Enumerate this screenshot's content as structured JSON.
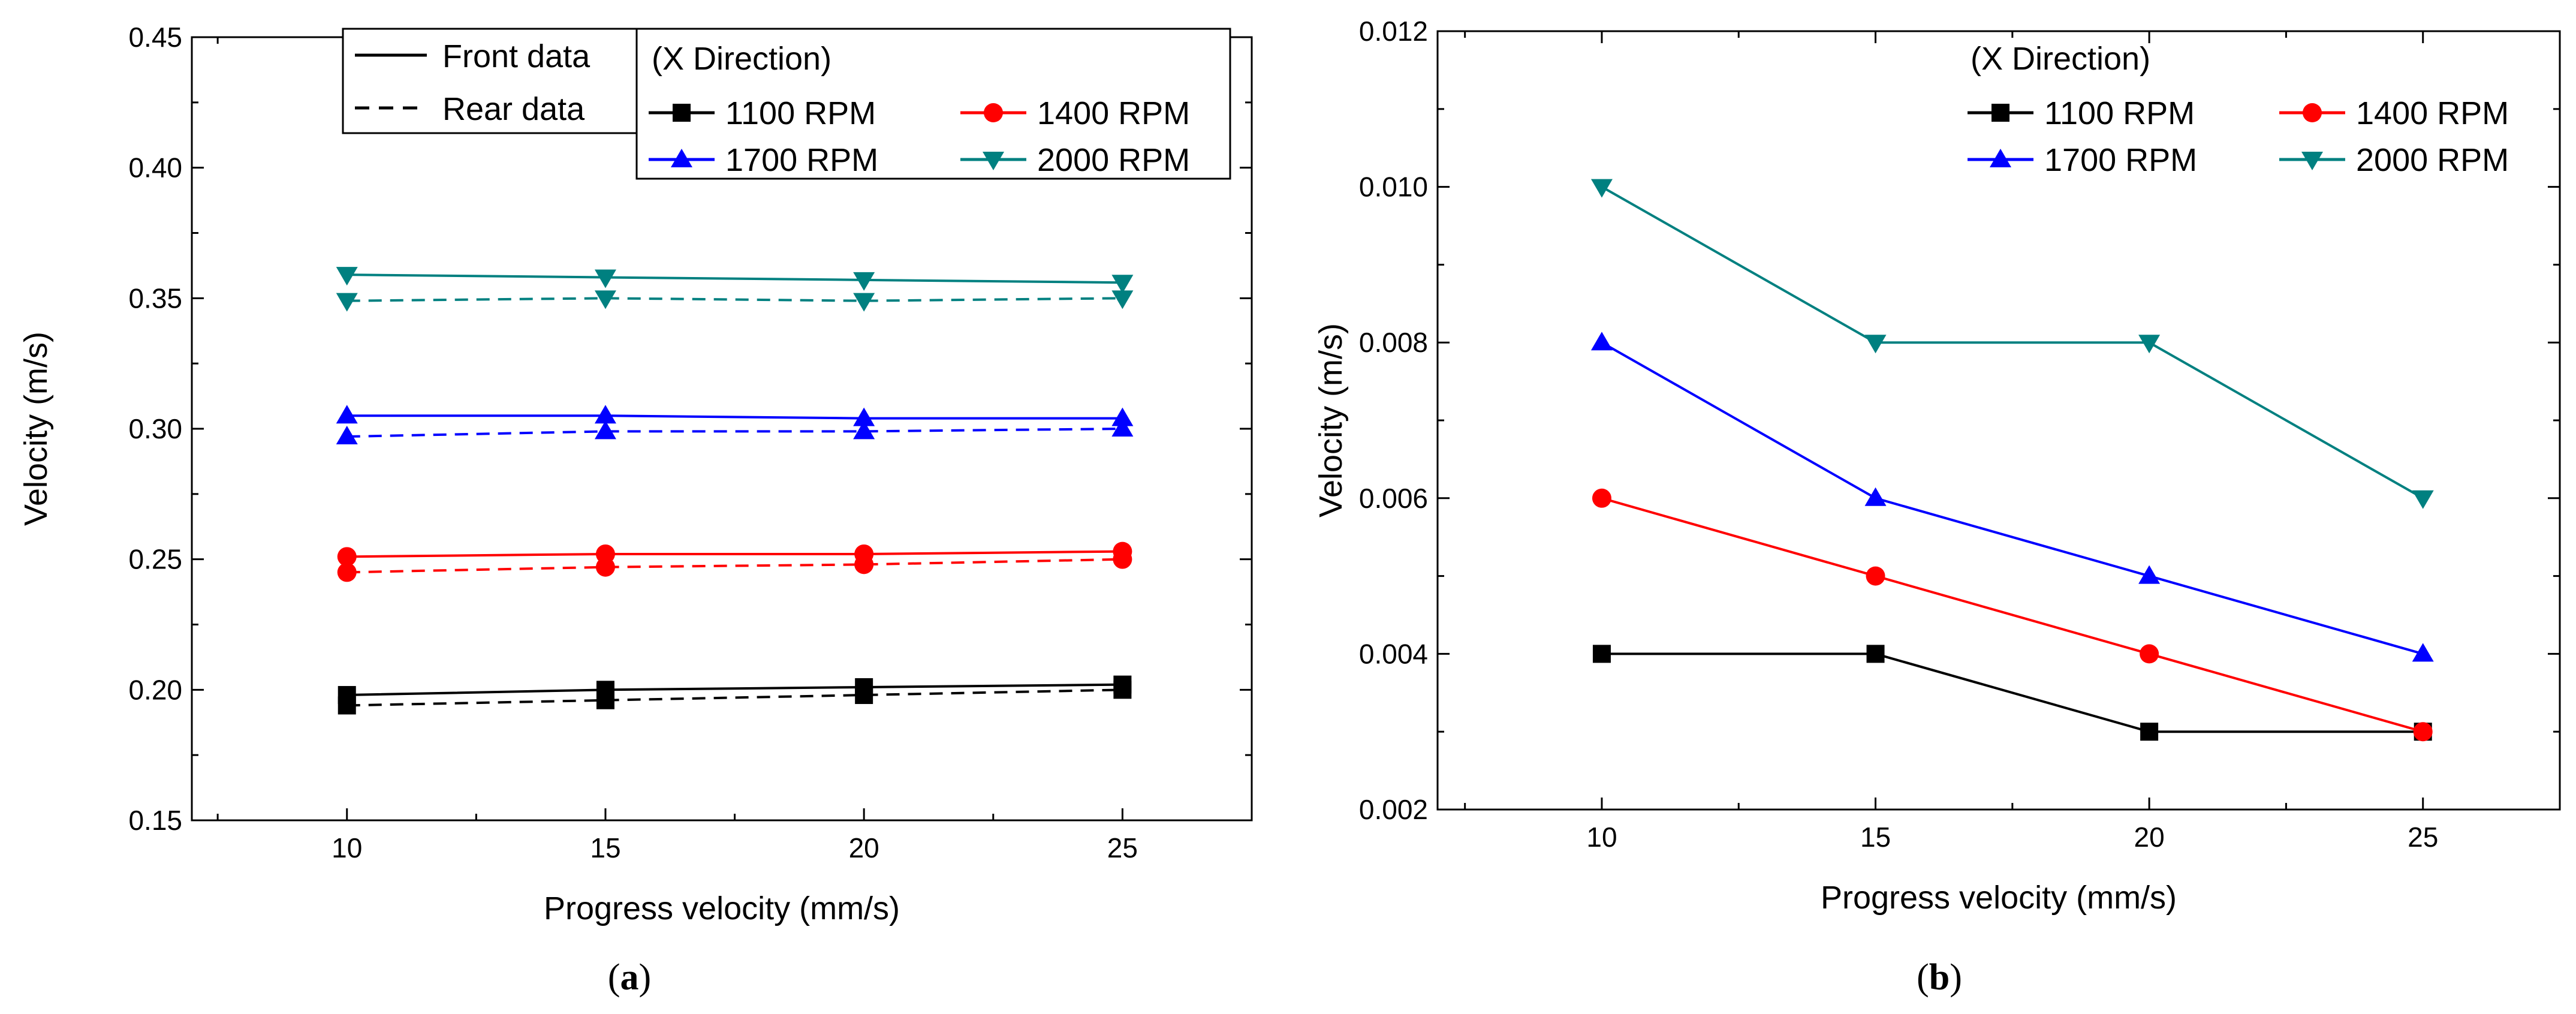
{
  "chart_data": [
    {
      "id": "a",
      "type": "line",
      "caption_open": "(",
      "caption_letter": "a",
      "caption_close": ")",
      "xlabel": "Progress velocity (mm/s)",
      "ylabel": "Velocity (m/s)",
      "xlim": [
        7,
        27.5
      ],
      "ylim": [
        0.15,
        0.45
      ],
      "x_ticks": [
        "10",
        "15",
        "20",
        "25"
      ],
      "y_ticks": [
        "0.15",
        "0.20",
        "0.25",
        "0.30",
        "0.35",
        "0.40",
        "0.45"
      ],
      "x": [
        10,
        15,
        20,
        25
      ],
      "style_legend": {
        "front_label": "Front data",
        "rear_label": "Rear data"
      },
      "legend_title": "(X Direction)",
      "series": [
        {
          "name": "1100 RPM",
          "color": "#000000",
          "marker": "square",
          "front": [
            0.198,
            0.2,
            0.201,
            0.202
          ],
          "rear": [
            0.194,
            0.196,
            0.198,
            0.2
          ]
        },
        {
          "name": "1400 RPM",
          "color": "#ff0000",
          "marker": "circle",
          "front": [
            0.251,
            0.252,
            0.252,
            0.253
          ],
          "rear": [
            0.245,
            0.247,
            0.248,
            0.25
          ]
        },
        {
          "name": "1700 RPM",
          "color": "#0000ff",
          "marker": "triangle-up",
          "front": [
            0.305,
            0.305,
            0.304,
            0.304
          ],
          "rear": [
            0.297,
            0.299,
            0.299,
            0.3
          ]
        },
        {
          "name": "2000 RPM",
          "color": "#008080",
          "marker": "triangle-down",
          "front": [
            0.359,
            0.358,
            0.357,
            0.356
          ],
          "rear": [
            0.349,
            0.35,
            0.349,
            0.35
          ]
        }
      ]
    },
    {
      "id": "b",
      "type": "line",
      "caption_open": "(",
      "caption_letter": "b",
      "caption_close": ")",
      "xlabel": "Progress velocity (mm/s)",
      "ylabel": "Velocity (m/s)",
      "xlim": [
        7,
        27.5
      ],
      "ylim": [
        0.002,
        0.012
      ],
      "x_ticks": [
        "10",
        "15",
        "20",
        "25"
      ],
      "y_ticks": [
        "0.002",
        "0.004",
        "0.006",
        "0.008",
        "0.010",
        "0.012"
      ],
      "x": [
        10,
        15,
        20,
        25
      ],
      "legend_title": "(X Direction)",
      "series": [
        {
          "name": "1100 RPM",
          "color": "#000000",
          "marker": "square",
          "values": [
            0.004,
            0.004,
            0.003,
            0.003
          ]
        },
        {
          "name": "1400 RPM",
          "color": "#ff0000",
          "marker": "circle",
          "values": [
            0.006,
            0.005,
            0.004,
            0.003
          ]
        },
        {
          "name": "1700 RPM",
          "color": "#0000ff",
          "marker": "triangle-up",
          "values": [
            0.008,
            0.006,
            0.005,
            0.004
          ]
        },
        {
          "name": "2000 RPM",
          "color": "#008080",
          "marker": "triangle-down",
          "values": [
            0.01,
            0.008,
            0.008,
            0.006
          ]
        }
      ]
    }
  ]
}
